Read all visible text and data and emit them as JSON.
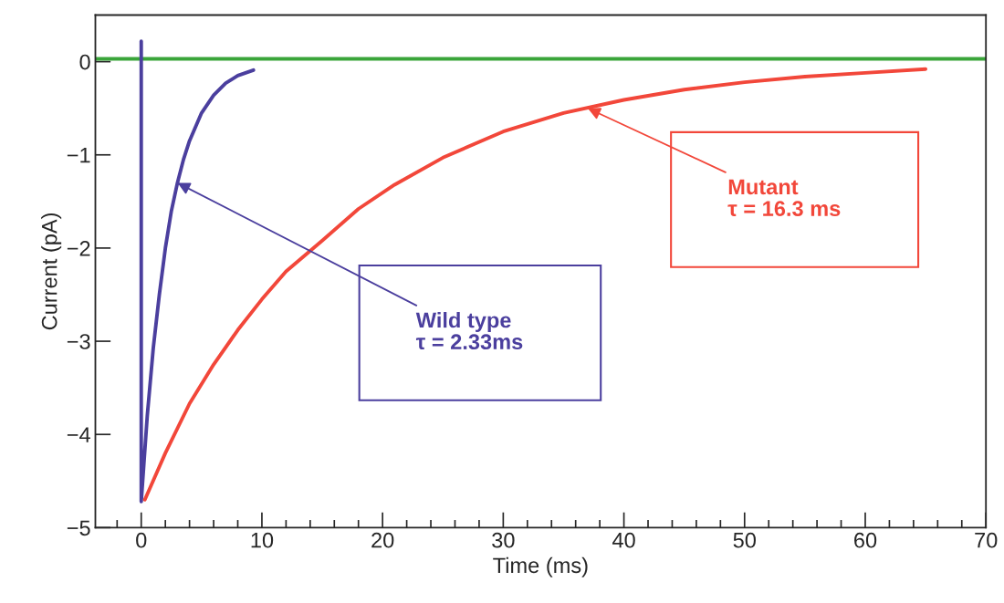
{
  "chart_data": {
    "type": "line",
    "xlabel": "Time (ms)",
    "ylabel": "Current (pA)",
    "xlim": [
      -3.8,
      70
    ],
    "xticks": [
      0,
      10,
      20,
      30,
      40,
      50,
      60,
      70
    ],
    "ylim": [
      -5,
      0.5
    ],
    "yticks": [
      {
        "value": 0,
        "label": "0"
      },
      {
        "value": -1,
        "label": "−1"
      },
      {
        "value": -2,
        "label": "−2"
      },
      {
        "value": -3,
        "label": "−3"
      },
      {
        "value": -4,
        "label": "−4"
      },
      {
        "value": -5,
        "label": "−5"
      }
    ],
    "series": [
      {
        "color": "#4b3f9e",
        "x": [
          0,
          0,
          0.5,
          1,
          1.5,
          2,
          2.5,
          3,
          3.5,
          4,
          5,
          6,
          7,
          8,
          9.3
        ],
        "values": [
          0.22,
          -4.72,
          -3.8,
          -3.07,
          -2.5,
          -2.0,
          -1.6,
          -1.3,
          -1.05,
          -0.85,
          -0.55,
          -0.36,
          -0.23,
          -0.15,
          -0.09
        ]
      },
      {
        "color": "#f2473a",
        "x": [
          0.3,
          2,
          4,
          6,
          8,
          10,
          12,
          15,
          18,
          21,
          25,
          30,
          35,
          40,
          45,
          50,
          55,
          60,
          65
        ],
        "values": [
          -4.7,
          -4.2,
          -3.67,
          -3.25,
          -2.88,
          -2.55,
          -2.25,
          -1.92,
          -1.58,
          -1.32,
          -1.03,
          -0.75,
          -0.55,
          -0.41,
          -0.3,
          -0.22,
          -0.16,
          -0.12,
          -0.08
        ]
      }
    ],
    "ref_lines": [
      {
        "axis": "y",
        "value": 0.03,
        "color": "#3aa53a"
      }
    ],
    "annotations": [
      {
        "text": "Wild type\nτ = 2.33ms",
        "x": 3,
        "y": -1.3
      },
      {
        "text": "Mutant\nτ = 16.3 ms",
        "x": 37,
        "y": -0.5
      }
    ],
    "grid": false,
    "legend": false
  }
}
